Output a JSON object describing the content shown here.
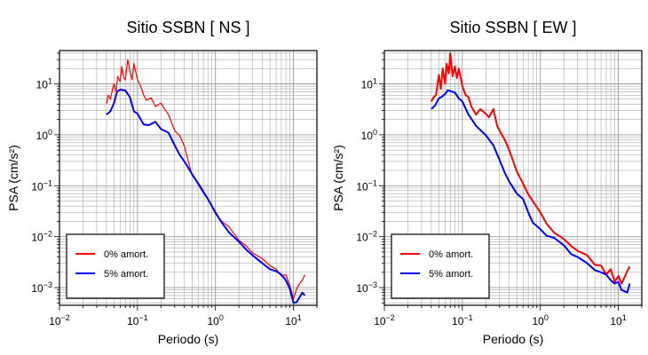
{
  "chart_data": [
    {
      "type": "line",
      "title": "Sitio SSBN [ NS ]",
      "xlabel": "Periodo (s)",
      "ylabel": "PSA (cm/s²)",
      "xscale": "log",
      "yscale": "log",
      "xlim": [
        0.01,
        20
      ],
      "ylim": [
        0.00045,
        45
      ],
      "grid": true,
      "legend_position": "bottom-left",
      "x_ticks": [
        {
          "value": 0.01,
          "base": "10",
          "exp": "−2"
        },
        {
          "value": 0.1,
          "base": "10",
          "exp": "−1"
        },
        {
          "value": 1,
          "base": "10",
          "exp": "0"
        },
        {
          "value": 10,
          "base": "10",
          "exp": "1"
        }
      ],
      "y_ticks": [
        {
          "value": 0.001,
          "base": "10",
          "exp": "−3"
        },
        {
          "value": 0.01,
          "base": "10",
          "exp": "−2"
        },
        {
          "value": 0.1,
          "base": "10",
          "exp": "−1"
        },
        {
          "value": 1,
          "base": "10",
          "exp": "0"
        },
        {
          "value": 10,
          "base": "10",
          "exp": "1"
        }
      ],
      "series": [
        {
          "name": "0% amort.",
          "color": "#ff0000",
          "x": [
            0.04,
            0.042,
            0.045,
            0.048,
            0.05,
            0.053,
            0.056,
            0.06,
            0.063,
            0.067,
            0.07,
            0.075,
            0.08,
            0.085,
            0.09,
            0.1,
            0.11,
            0.12,
            0.13,
            0.15,
            0.17,
            0.2,
            0.22,
            0.25,
            0.3,
            0.35,
            0.4,
            0.5,
            0.6,
            0.7,
            0.8,
            1.0,
            1.2,
            1.5,
            2.0,
            2.5,
            3.0,
            4.0,
            5.0,
            6.0,
            7.0,
            8.0,
            9.0,
            10.0,
            11.0,
            12.0,
            13.0,
            14.0
          ],
          "y": [
            4,
            6,
            5,
            8,
            10,
            7,
            14,
            11,
            22,
            13,
            12,
            30,
            18,
            12,
            25,
            12,
            9,
            6,
            4.8,
            5.3,
            3.6,
            4.2,
            3.3,
            2.5,
            1.2,
            0.95,
            0.6,
            0.16,
            0.115,
            0.08,
            0.055,
            0.028,
            0.02,
            0.0155,
            0.0085,
            0.0065,
            0.0048,
            0.0037,
            0.0027,
            0.0023,
            0.0017,
            0.0018,
            0.0011,
            0.0006,
            0.00095,
            0.0012,
            0.0014,
            0.0018
          ]
        },
        {
          "name": "5% amort.",
          "color": "#0000ff",
          "x": [
            0.04,
            0.045,
            0.05,
            0.055,
            0.06,
            0.07,
            0.08,
            0.09,
            0.1,
            0.12,
            0.14,
            0.17,
            0.2,
            0.25,
            0.3,
            0.35,
            0.4,
            0.5,
            0.6,
            0.7,
            0.8,
            1.0,
            1.2,
            1.5,
            2.0,
            2.5,
            3.0,
            4.0,
            5.0,
            6.0,
            7.0,
            8.0,
            9.0,
            10.0,
            11.0,
            12.0,
            13.0,
            14.0
          ],
          "y": [
            2.5,
            2.9,
            4.2,
            7.1,
            7.7,
            7.4,
            5.5,
            2.9,
            2.6,
            1.6,
            1.55,
            1.8,
            1.3,
            1.1,
            0.62,
            0.4,
            0.3,
            0.17,
            0.11,
            0.075,
            0.055,
            0.03,
            0.019,
            0.012,
            0.008,
            0.0055,
            0.0043,
            0.003,
            0.0023,
            0.0021,
            0.0018,
            0.0014,
            0.00095,
            0.0005,
            0.00052,
            0.00065,
            0.0008,
            0.0007
          ]
        }
      ]
    },
    {
      "type": "line",
      "title": "Sitio SSBN [ EW ]",
      "xlabel": "Periodo (s)",
      "ylabel": "PSA (cm/s²)",
      "xscale": "log",
      "yscale": "log",
      "xlim": [
        0.01,
        20
      ],
      "ylim": [
        0.00045,
        45
      ],
      "grid": true,
      "legend_position": "bottom-left",
      "x_ticks": [
        {
          "value": 0.01,
          "base": "10",
          "exp": "−2"
        },
        {
          "value": 0.1,
          "base": "10",
          "exp": "−1"
        },
        {
          "value": 1,
          "base": "10",
          "exp": "0"
        },
        {
          "value": 10,
          "base": "10",
          "exp": "1"
        }
      ],
      "y_ticks": [
        {
          "value": 0.001,
          "base": "10",
          "exp": "−3"
        },
        {
          "value": 0.01,
          "base": "10",
          "exp": "−2"
        },
        {
          "value": 0.1,
          "base": "10",
          "exp": "−1"
        },
        {
          "value": 1,
          "base": "10",
          "exp": "0"
        },
        {
          "value": 10,
          "base": "10",
          "exp": "1"
        }
      ],
      "series": [
        {
          "name": "0% amort.",
          "color": "#ff0000",
          "x": [
            0.04,
            0.043,
            0.046,
            0.05,
            0.053,
            0.056,
            0.06,
            0.063,
            0.067,
            0.07,
            0.075,
            0.08,
            0.085,
            0.09,
            0.1,
            0.11,
            0.12,
            0.13,
            0.15,
            0.17,
            0.2,
            0.22,
            0.25,
            0.28,
            0.3,
            0.35,
            0.4,
            0.5,
            0.6,
            0.7,
            0.8,
            1.0,
            1.2,
            1.5,
            2.0,
            2.5,
            3.0,
            4.0,
            5.0,
            6.0,
            7.0,
            8.0,
            9.0,
            10.0,
            11.0,
            12.0,
            13.0,
            14.0
          ],
          "y": [
            4.5,
            5.5,
            6,
            15,
            8,
            20,
            10,
            25,
            16,
            40,
            14,
            22,
            13,
            20,
            9,
            6,
            5.5,
            3.6,
            2.5,
            3.2,
            2.6,
            2.2,
            3.2,
            1.5,
            1.2,
            0.8,
            0.5,
            0.19,
            0.11,
            0.068,
            0.05,
            0.03,
            0.018,
            0.012,
            0.009,
            0.0065,
            0.0053,
            0.0043,
            0.0028,
            0.0027,
            0.0018,
            0.0023,
            0.0013,
            0.0017,
            0.0012,
            0.0016,
            0.0021,
            0.0026
          ]
        },
        {
          "name": "5% amort.",
          "color": "#0000ff",
          "x": [
            0.04,
            0.045,
            0.05,
            0.055,
            0.06,
            0.065,
            0.07,
            0.08,
            0.09,
            0.1,
            0.12,
            0.15,
            0.2,
            0.25,
            0.3,
            0.35,
            0.4,
            0.5,
            0.6,
            0.7,
            0.8,
            1.0,
            1.2,
            1.5,
            2.0,
            2.5,
            3.0,
            4.0,
            5.0,
            6.0,
            7.0,
            8.0,
            9.0,
            10.0,
            11.0,
            12.0,
            13.0,
            14.0
          ],
          "y": [
            3.2,
            3.8,
            5.2,
            5.6,
            6.3,
            7.5,
            7.2,
            6.8,
            5.2,
            4.5,
            2.5,
            1.5,
            0.98,
            0.62,
            0.32,
            0.18,
            0.12,
            0.07,
            0.055,
            0.03,
            0.019,
            0.014,
            0.0105,
            0.0095,
            0.0068,
            0.0045,
            0.004,
            0.003,
            0.0022,
            0.002,
            0.0018,
            0.0014,
            0.0012,
            0.0013,
            0.0009,
            0.00085,
            0.0008,
            0.0012
          ]
        }
      ]
    }
  ]
}
